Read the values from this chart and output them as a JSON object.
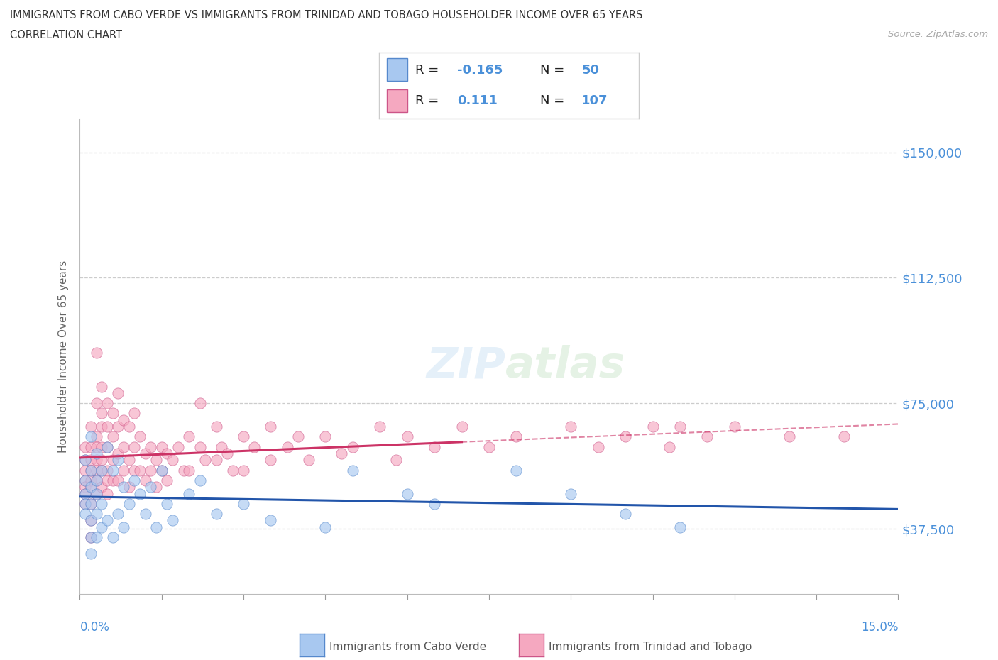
{
  "title_line1": "IMMIGRANTS FROM CABO VERDE VS IMMIGRANTS FROM TRINIDAD AND TOBAGO HOUSEHOLDER INCOME OVER 65 YEARS",
  "title_line2": "CORRELATION CHART",
  "source_text": "Source: ZipAtlas.com",
  "ylabel": "Householder Income Over 65 years",
  "xmin": 0.0,
  "xmax": 0.15,
  "ymin": 18000,
  "ymax": 160000,
  "yticks": [
    37500,
    75000,
    112500,
    150000
  ],
  "ytick_labels": [
    "$37,500",
    "$75,000",
    "$112,500",
    "$150,000"
  ],
  "color_cabo_verde": "#a8c8f0",
  "color_trinidad": "#f5a8c0",
  "edge_cabo_verde": "#5588cc",
  "edge_trinidad": "#cc5588",
  "line_color_cabo_verde": "#2255aa",
  "line_color_trinidad": "#cc3366",
  "R_cabo_verde": -0.165,
  "N_cabo_verde": 50,
  "R_trinidad": 0.111,
  "N_trinidad": 107,
  "cabo_verde_x": [
    0.001,
    0.001,
    0.001,
    0.001,
    0.001,
    0.002,
    0.002,
    0.002,
    0.002,
    0.002,
    0.002,
    0.002,
    0.003,
    0.003,
    0.003,
    0.003,
    0.003,
    0.004,
    0.004,
    0.004,
    0.005,
    0.005,
    0.006,
    0.006,
    0.007,
    0.007,
    0.008,
    0.008,
    0.009,
    0.01,
    0.011,
    0.012,
    0.013,
    0.014,
    0.015,
    0.016,
    0.017,
    0.02,
    0.022,
    0.025,
    0.03,
    0.035,
    0.045,
    0.05,
    0.06,
    0.065,
    0.08,
    0.09,
    0.1,
    0.11
  ],
  "cabo_verde_y": [
    58000,
    52000,
    48000,
    45000,
    42000,
    65000,
    55000,
    50000,
    45000,
    40000,
    35000,
    30000,
    60000,
    52000,
    48000,
    42000,
    35000,
    55000,
    45000,
    38000,
    62000,
    40000,
    55000,
    35000,
    58000,
    42000,
    50000,
    38000,
    45000,
    52000,
    48000,
    42000,
    50000,
    38000,
    55000,
    45000,
    40000,
    48000,
    52000,
    42000,
    45000,
    40000,
    38000,
    55000,
    48000,
    45000,
    55000,
    48000,
    42000,
    38000
  ],
  "trinidad_x": [
    0.001,
    0.001,
    0.001,
    0.001,
    0.001,
    0.001,
    0.001,
    0.002,
    0.002,
    0.002,
    0.002,
    0.002,
    0.002,
    0.002,
    0.002,
    0.002,
    0.003,
    0.003,
    0.003,
    0.003,
    0.003,
    0.003,
    0.003,
    0.003,
    0.004,
    0.004,
    0.004,
    0.004,
    0.004,
    0.004,
    0.004,
    0.005,
    0.005,
    0.005,
    0.005,
    0.005,
    0.005,
    0.006,
    0.006,
    0.006,
    0.006,
    0.007,
    0.007,
    0.007,
    0.007,
    0.008,
    0.008,
    0.008,
    0.009,
    0.009,
    0.009,
    0.01,
    0.01,
    0.01,
    0.011,
    0.011,
    0.012,
    0.012,
    0.013,
    0.013,
    0.014,
    0.014,
    0.015,
    0.015,
    0.016,
    0.016,
    0.017,
    0.018,
    0.019,
    0.02,
    0.02,
    0.022,
    0.022,
    0.023,
    0.025,
    0.025,
    0.026,
    0.027,
    0.028,
    0.03,
    0.03,
    0.032,
    0.035,
    0.035,
    0.038,
    0.04,
    0.042,
    0.045,
    0.048,
    0.05,
    0.055,
    0.058,
    0.06,
    0.065,
    0.07,
    0.075,
    0.08,
    0.09,
    0.095,
    0.1,
    0.105,
    0.108,
    0.11,
    0.115,
    0.12,
    0.13,
    0.14
  ],
  "trinidad_y": [
    62000,
    58000,
    55000,
    52000,
    50000,
    48000,
    45000,
    68000,
    62000,
    58000,
    55000,
    52000,
    50000,
    45000,
    40000,
    35000,
    90000,
    75000,
    65000,
    62000,
    58000,
    55000,
    52000,
    48000,
    80000,
    72000,
    68000,
    62000,
    58000,
    55000,
    50000,
    75000,
    68000,
    62000,
    55000,
    52000,
    48000,
    72000,
    65000,
    58000,
    52000,
    78000,
    68000,
    60000,
    52000,
    70000,
    62000,
    55000,
    68000,
    58000,
    50000,
    72000,
    62000,
    55000,
    65000,
    55000,
    60000,
    52000,
    62000,
    55000,
    58000,
    50000,
    62000,
    55000,
    60000,
    52000,
    58000,
    62000,
    55000,
    65000,
    55000,
    75000,
    62000,
    58000,
    68000,
    58000,
    62000,
    60000,
    55000,
    65000,
    55000,
    62000,
    68000,
    58000,
    62000,
    65000,
    58000,
    65000,
    60000,
    62000,
    68000,
    58000,
    65000,
    62000,
    68000,
    62000,
    65000,
    68000,
    62000,
    65000,
    68000,
    62000,
    68000,
    65000,
    68000,
    65000,
    65000
  ]
}
